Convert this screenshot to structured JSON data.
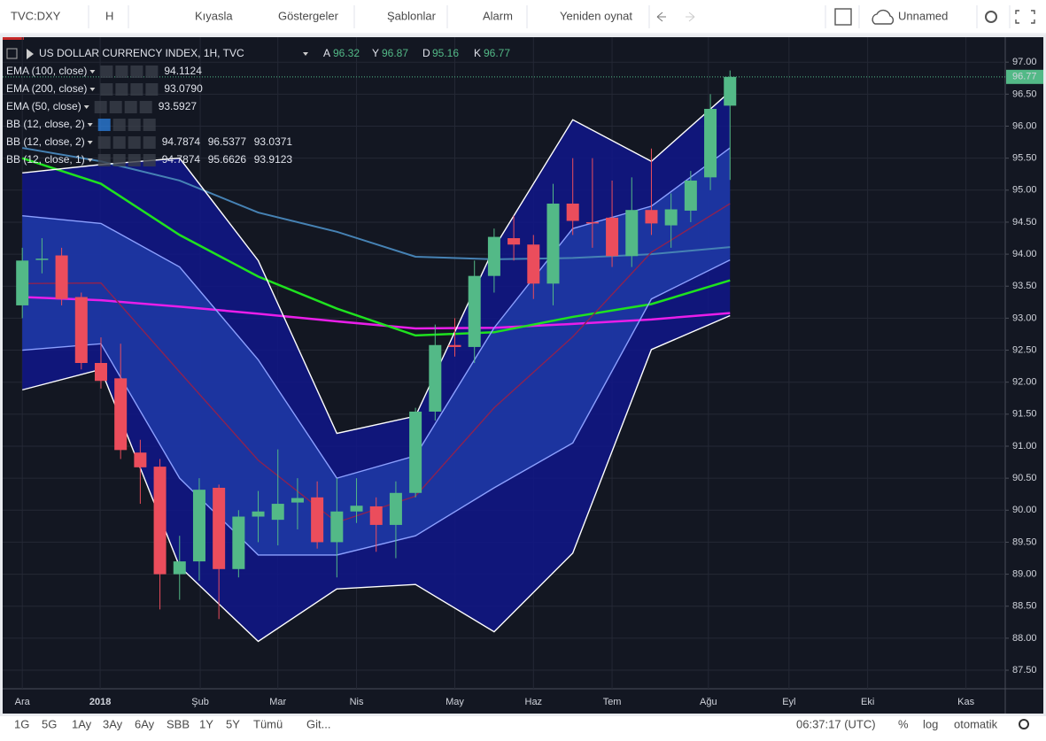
{
  "toolbar": {
    "symbol": "TVC:DXY",
    "interval": "H",
    "items": [
      "Kıyasla",
      "Göstergeler",
      "Şablonlar",
      "Alarm",
      "Yeniden oynat"
    ],
    "layout_name": "Unnamed"
  },
  "bottom_bar": {
    "ranges": [
      "1G",
      "5G",
      "1Ay",
      "3Ay",
      "6Ay",
      "SBB",
      "1Y",
      "5Y",
      "Tümü"
    ],
    "goto": "Git...",
    "clock": "06:37:17 (UTC)",
    "percent": "%",
    "log": "log",
    "auto": "otomatik"
  },
  "chart_data": {
    "type": "candlestick",
    "title": "US DOLLAR CURRENCY INDEX, 1H, TVC",
    "ohlc_legend": [
      {
        "label": "A",
        "value": "96.32"
      },
      {
        "label": "Y",
        "value": "96.87"
      },
      {
        "label": "D",
        "value": "95.16"
      },
      {
        "label": "K",
        "value": "96.77"
      }
    ],
    "indicators": [
      {
        "name": "EMA (100, close)",
        "values": [
          "94.1124"
        ],
        "color": "#4f8fd0"
      },
      {
        "name": "EMA (200, close)",
        "values": [
          "93.0790"
        ],
        "color": "#e91ee9"
      },
      {
        "name": "EMA (50, close)",
        "values": [
          "93.5927"
        ],
        "color": "#3ae83a"
      },
      {
        "name": "BB (12, close, 2)",
        "values": [],
        "color": "#e0e3eb"
      },
      {
        "name": "BB (12, close, 2)",
        "values": [
          "94.7874",
          "96.5377",
          "93.0371"
        ],
        "color": "#a0522d"
      },
      {
        "name": "BB (12, close, 1)",
        "values": [
          "94.7874",
          "95.6626",
          "93.9123"
        ],
        "color": "#a0522d"
      }
    ],
    "open": [
      93.2,
      93.91,
      93.98,
      93.33,
      92.3,
      92.06,
      90.9,
      90.68,
      89.0,
      89.2,
      90.35,
      89.08,
      89.9,
      89.85,
      90.12,
      90.2,
      89.5,
      89.98,
      90.06,
      89.77,
      90.27,
      91.54,
      92.58,
      92.55,
      93.66,
      94.25,
      94.15,
      93.54,
      94.79,
      94.5,
      94.57,
      93.97,
      94.69,
      94.45,
      94.68,
      95.2,
      96.32
    ],
    "high": [
      94.1,
      94.25,
      94.1,
      93.4,
      92.7,
      92.6,
      91.1,
      90.8,
      89.6,
      90.5,
      90.4,
      90.0,
      90.3,
      90.95,
      90.5,
      90.45,
      90.5,
      90.5,
      90.2,
      90.45,
      91.6,
      92.9,
      93.0,
      93.9,
      94.4,
      94.6,
      94.3,
      95.1,
      95.5,
      95.5,
      95.15,
      95.2,
      95.65,
      94.95,
      95.3,
      96.5,
      96.87
    ],
    "low": [
      93.0,
      93.7,
      93.2,
      92.2,
      91.9,
      90.8,
      90.1,
      88.45,
      88.6,
      88.9,
      88.3,
      88.95,
      89.5,
      89.45,
      89.7,
      89.4,
      88.95,
      89.8,
      89.35,
      89.25,
      90.2,
      91.4,
      92.4,
      92.3,
      93.4,
      93.9,
      93.3,
      93.2,
      94.3,
      94.1,
      93.8,
      93.8,
      94.3,
      94.1,
      94.5,
      95.0,
      95.16
    ],
    "close": [
      93.9,
      93.93,
      93.3,
      92.3,
      92.02,
      90.94,
      90.67,
      89.0,
      89.2,
      90.32,
      89.08,
      89.9,
      89.98,
      90.1,
      90.19,
      89.5,
      89.98,
      90.07,
      89.77,
      90.27,
      91.54,
      92.58,
      92.55,
      93.66,
      94.27,
      94.15,
      93.54,
      94.79,
      94.52,
      94.48,
      93.97,
      94.69,
      94.48,
      94.7,
      95.15,
      96.27,
      96.77
    ],
    "up_color": "#53b987",
    "down_color": "#eb4d5c",
    "lines": [
      {
        "color": "#4682b4",
        "x": [
          0,
          4,
          8,
          12,
          16,
          20,
          24,
          28,
          32,
          36
        ],
        "values": [
          95.66,
          95.45,
          95.15,
          94.65,
          94.35,
          93.96,
          93.92,
          93.94,
          94.0,
          94.11
        ]
      },
      {
        "color": "#e91ee9",
        "x": [
          0,
          4,
          8,
          12,
          16,
          20,
          24,
          28,
          32,
          36
        ],
        "values": [
          93.33,
          93.28,
          93.18,
          93.07,
          92.95,
          92.84,
          92.85,
          92.91,
          92.98,
          93.08
        ]
      },
      {
        "color": "#1fe21f",
        "x": [
          0,
          4,
          8,
          12,
          16,
          20,
          24,
          28,
          32,
          36
        ],
        "values": [
          95.5,
          95.1,
          94.3,
          93.65,
          93.15,
          92.73,
          92.78,
          93.02,
          93.22,
          93.59
        ]
      },
      {
        "color": "#ffffff",
        "x": [
          0,
          4,
          8,
          12,
          16,
          20,
          24,
          28,
          32,
          36
        ],
        "values": [
          95.27,
          95.4,
          95.5,
          93.9,
          91.2,
          91.47,
          94.1,
          96.1,
          95.45,
          96.54
        ]
      },
      {
        "color": "#ffffff",
        "x": [
          0,
          4,
          8,
          12,
          16,
          20,
          24,
          28,
          32,
          36
        ],
        "values": [
          91.88,
          92.2,
          89.12,
          87.95,
          88.77,
          88.84,
          88.1,
          89.33,
          92.51,
          93.04
        ]
      },
      {
        "color": "#8b2252",
        "x": [
          0,
          4,
          8,
          12,
          16,
          20,
          24,
          28,
          32,
          36
        ],
        "values": [
          93.54,
          93.55,
          92.16,
          90.78,
          89.81,
          90.22,
          91.6,
          92.71,
          94.03,
          94.79
        ]
      },
      {
        "color": "#8ca0ff",
        "x": [
          0,
          4,
          8,
          12,
          16,
          20,
          24,
          28,
          32,
          36
        ],
        "values": [
          94.6,
          94.48,
          93.8,
          92.35,
          90.5,
          90.85,
          92.85,
          94.4,
          94.75,
          95.66
        ]
      },
      {
        "color": "#8ca0ff",
        "x": [
          0,
          4,
          8,
          12,
          16,
          20,
          24,
          28,
          32,
          36
        ],
        "values": [
          92.5,
          92.6,
          90.5,
          89.3,
          89.3,
          89.6,
          90.35,
          91.05,
          93.3,
          93.91
        ]
      }
    ],
    "outer_band_color": "#10168a",
    "inner_band_color": "#1f3aa6",
    "last_price": 96.77,
    "xlim": [
      -1,
      50
    ],
    "xticks": [
      {
        "value": 0,
        "label": "Ara"
      },
      {
        "value": 3.96,
        "label": "2018"
      },
      {
        "value": 9.05,
        "label": "Şub"
      },
      {
        "value": 13,
        "label": "Mar"
      },
      {
        "value": 17,
        "label": "Nis"
      },
      {
        "value": 22,
        "label": "May"
      },
      {
        "value": 26,
        "label": "Haz"
      },
      {
        "value": 30,
        "label": "Tem"
      },
      {
        "value": 34.9,
        "label": "Ağu"
      },
      {
        "value": 39,
        "label": "Eyl"
      },
      {
        "value": 43,
        "label": "Eki"
      },
      {
        "value": 48,
        "label": "Kas"
      }
    ],
    "ylim": [
      87.21,
      97.39
    ],
    "yticks": [
      {
        "value": 87.5,
        "label": "87.50"
      },
      {
        "value": 88,
        "label": "88.00"
      },
      {
        "value": 88.5,
        "label": "88.50"
      },
      {
        "value": 89,
        "label": "89.00"
      },
      {
        "value": 89.5,
        "label": "89.50"
      },
      {
        "value": 90,
        "label": "90.00"
      },
      {
        "value": 90.5,
        "label": "90.50"
      },
      {
        "value": 91,
        "label": "91.00"
      },
      {
        "value": 91.5,
        "label": "91.50"
      },
      {
        "value": 92,
        "label": "92.00"
      },
      {
        "value": 92.5,
        "label": "92.50"
      },
      {
        "value": 93,
        "label": "93.00"
      },
      {
        "value": 93.5,
        "label": "93.50"
      },
      {
        "value": 94,
        "label": "94.00"
      },
      {
        "value": 94.5,
        "label": "94.50"
      },
      {
        "value": 95,
        "label": "95.00"
      },
      {
        "value": 95.5,
        "label": "95.50"
      },
      {
        "value": 96,
        "label": "96.00"
      },
      {
        "value": 96.5,
        "label": "96.50"
      },
      {
        "value": 97,
        "label": "97.00"
      }
    ],
    "grid": true
  }
}
